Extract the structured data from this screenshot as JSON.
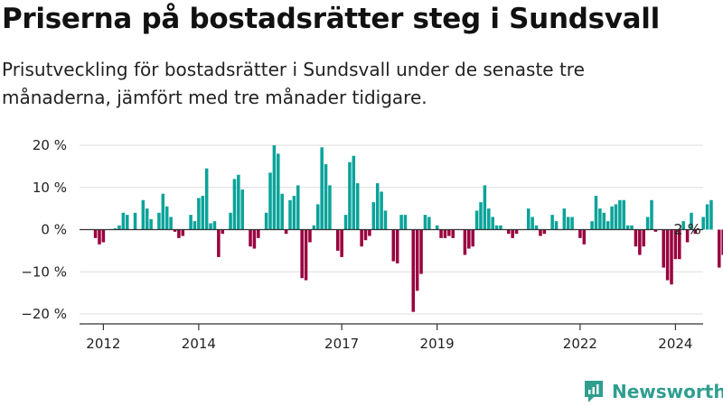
{
  "title": "Priserna på bostadsrätter steg i Sundsvall",
  "subtitle": "Prisutveckling för bostadsrätter i Sundsvall under de senaste tre månaderna, jämfört med tre månader tidigare.",
  "brand": {
    "name": "Newsworthy",
    "icon": "newsworthy-logo-icon"
  },
  "colors": {
    "positive": "#0aa39a",
    "negative": "#99003f",
    "grid": "#dddddd",
    "axis": "#333333",
    "text": "#222222"
  },
  "chart_data": {
    "type": "bar",
    "ylim": [
      -22,
      22
    ],
    "y_ticks": [
      20,
      10,
      0,
      -10,
      -20
    ],
    "y_tick_labels": [
      "20 %",
      "10 %",
      "0 %",
      "−10 %",
      "−20 %"
    ],
    "x_start": 2011.5,
    "x_end": 2024.58,
    "x_ticks": [
      2012,
      2014,
      2017,
      2019,
      2022,
      2024
    ],
    "x_tick_labels": [
      "2012",
      "2014",
      "2017",
      "2019",
      "2022",
      "2024"
    ],
    "annotation": {
      "text": "2 %",
      "month": "2024-04"
    },
    "series": [
      {
        "x_first": "2011-07",
        "interval": "month",
        "values": [
          0,
          0,
          0,
          0,
          -2,
          -3.5,
          -3,
          0,
          0,
          0.3,
          1,
          4,
          3.5,
          0,
          4,
          0,
          7,
          5,
          2.5,
          0,
          4,
          8.5,
          5.5,
          3,
          -0.5,
          -2,
          -1.5,
          0,
          3.5,
          2,
          7.5,
          8,
          14.5,
          1.5,
          2,
          -6.5,
          -1,
          0,
          4,
          12,
          13,
          9.5,
          0,
          -4,
          -4.5,
          -2,
          0,
          4,
          13.5,
          20,
          18,
          8.5,
          -1,
          7,
          8,
          10.5,
          -11.5,
          -12,
          -3,
          1,
          6,
          19.5,
          15.5,
          10.5,
          0,
          -5,
          -6.5,
          3.5,
          16,
          17.5,
          11,
          -4,
          -2.5,
          -1.5,
          6.5,
          11,
          9,
          4.5,
          0,
          -7.5,
          -8,
          3.5,
          3.5,
          0,
          -19.5,
          -14.5,
          -10.5,
          3.5,
          3,
          0,
          1,
          -2,
          -2,
          -1.5,
          -2,
          0,
          0,
          -6,
          -4.5,
          -4,
          4.5,
          6.5,
          10.5,
          5,
          3,
          1,
          1,
          0,
          -1,
          -2,
          -1,
          0,
          0,
          5,
          3,
          1,
          -1.5,
          -1,
          0,
          3.5,
          2,
          0,
          5,
          3,
          3,
          0,
          -2,
          -3.5,
          0,
          2,
          8,
          5,
          4,
          2,
          5.5,
          6,
          7,
          7,
          1,
          1,
          -4,
          -6,
          -4,
          3,
          7,
          -0.5,
          0,
          -9,
          -12,
          -13,
          -7,
          -7,
          2,
          -3,
          4,
          -1,
          0,
          3,
          6,
          7,
          0,
          -9,
          -6,
          -3,
          5,
          -3,
          2
        ]
      }
    ]
  }
}
